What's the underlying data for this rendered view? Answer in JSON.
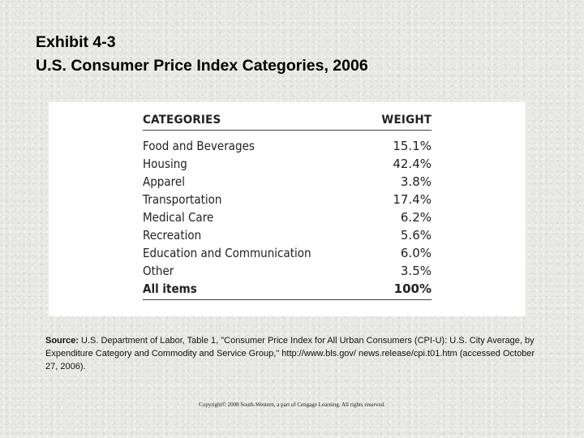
{
  "title": {
    "line1": "Exhibit 4-3",
    "line2": "U.S. Consumer Price Index Categories, 2006"
  },
  "table": {
    "header_category": "CATEGORIES",
    "header_weight": "WEIGHT",
    "rows": [
      {
        "category": "Food and Beverages",
        "weight": "15.1%"
      },
      {
        "category": "Housing",
        "weight": "42.4%"
      },
      {
        "category": "Apparel",
        "weight": "3.8%"
      },
      {
        "category": "Transportation",
        "weight": "17.4%"
      },
      {
        "category": "Medical Care",
        "weight": "6.2%"
      },
      {
        "category": "Recreation",
        "weight": "5.6%"
      },
      {
        "category": "Education and Communication",
        "weight": "6.0%"
      },
      {
        "category": "Other",
        "weight": "3.5%"
      }
    ],
    "total": {
      "category": "All items",
      "weight": "100%"
    }
  },
  "source": {
    "label": "Source:",
    "text": "U.S. Department of Labor, Table 1, \"Consumer Price Index for All Urban Consumers (CPI-U): U.S. City Average, by Expenditure Category and Commodity and Service Group,\" http://www.bls.gov/ news.release/cpi.t01.htm (accessed October 27, 2006)."
  },
  "copyright": "Copyright© 2008 South-Western, a part of Cengage Learning. All rights reserved."
}
